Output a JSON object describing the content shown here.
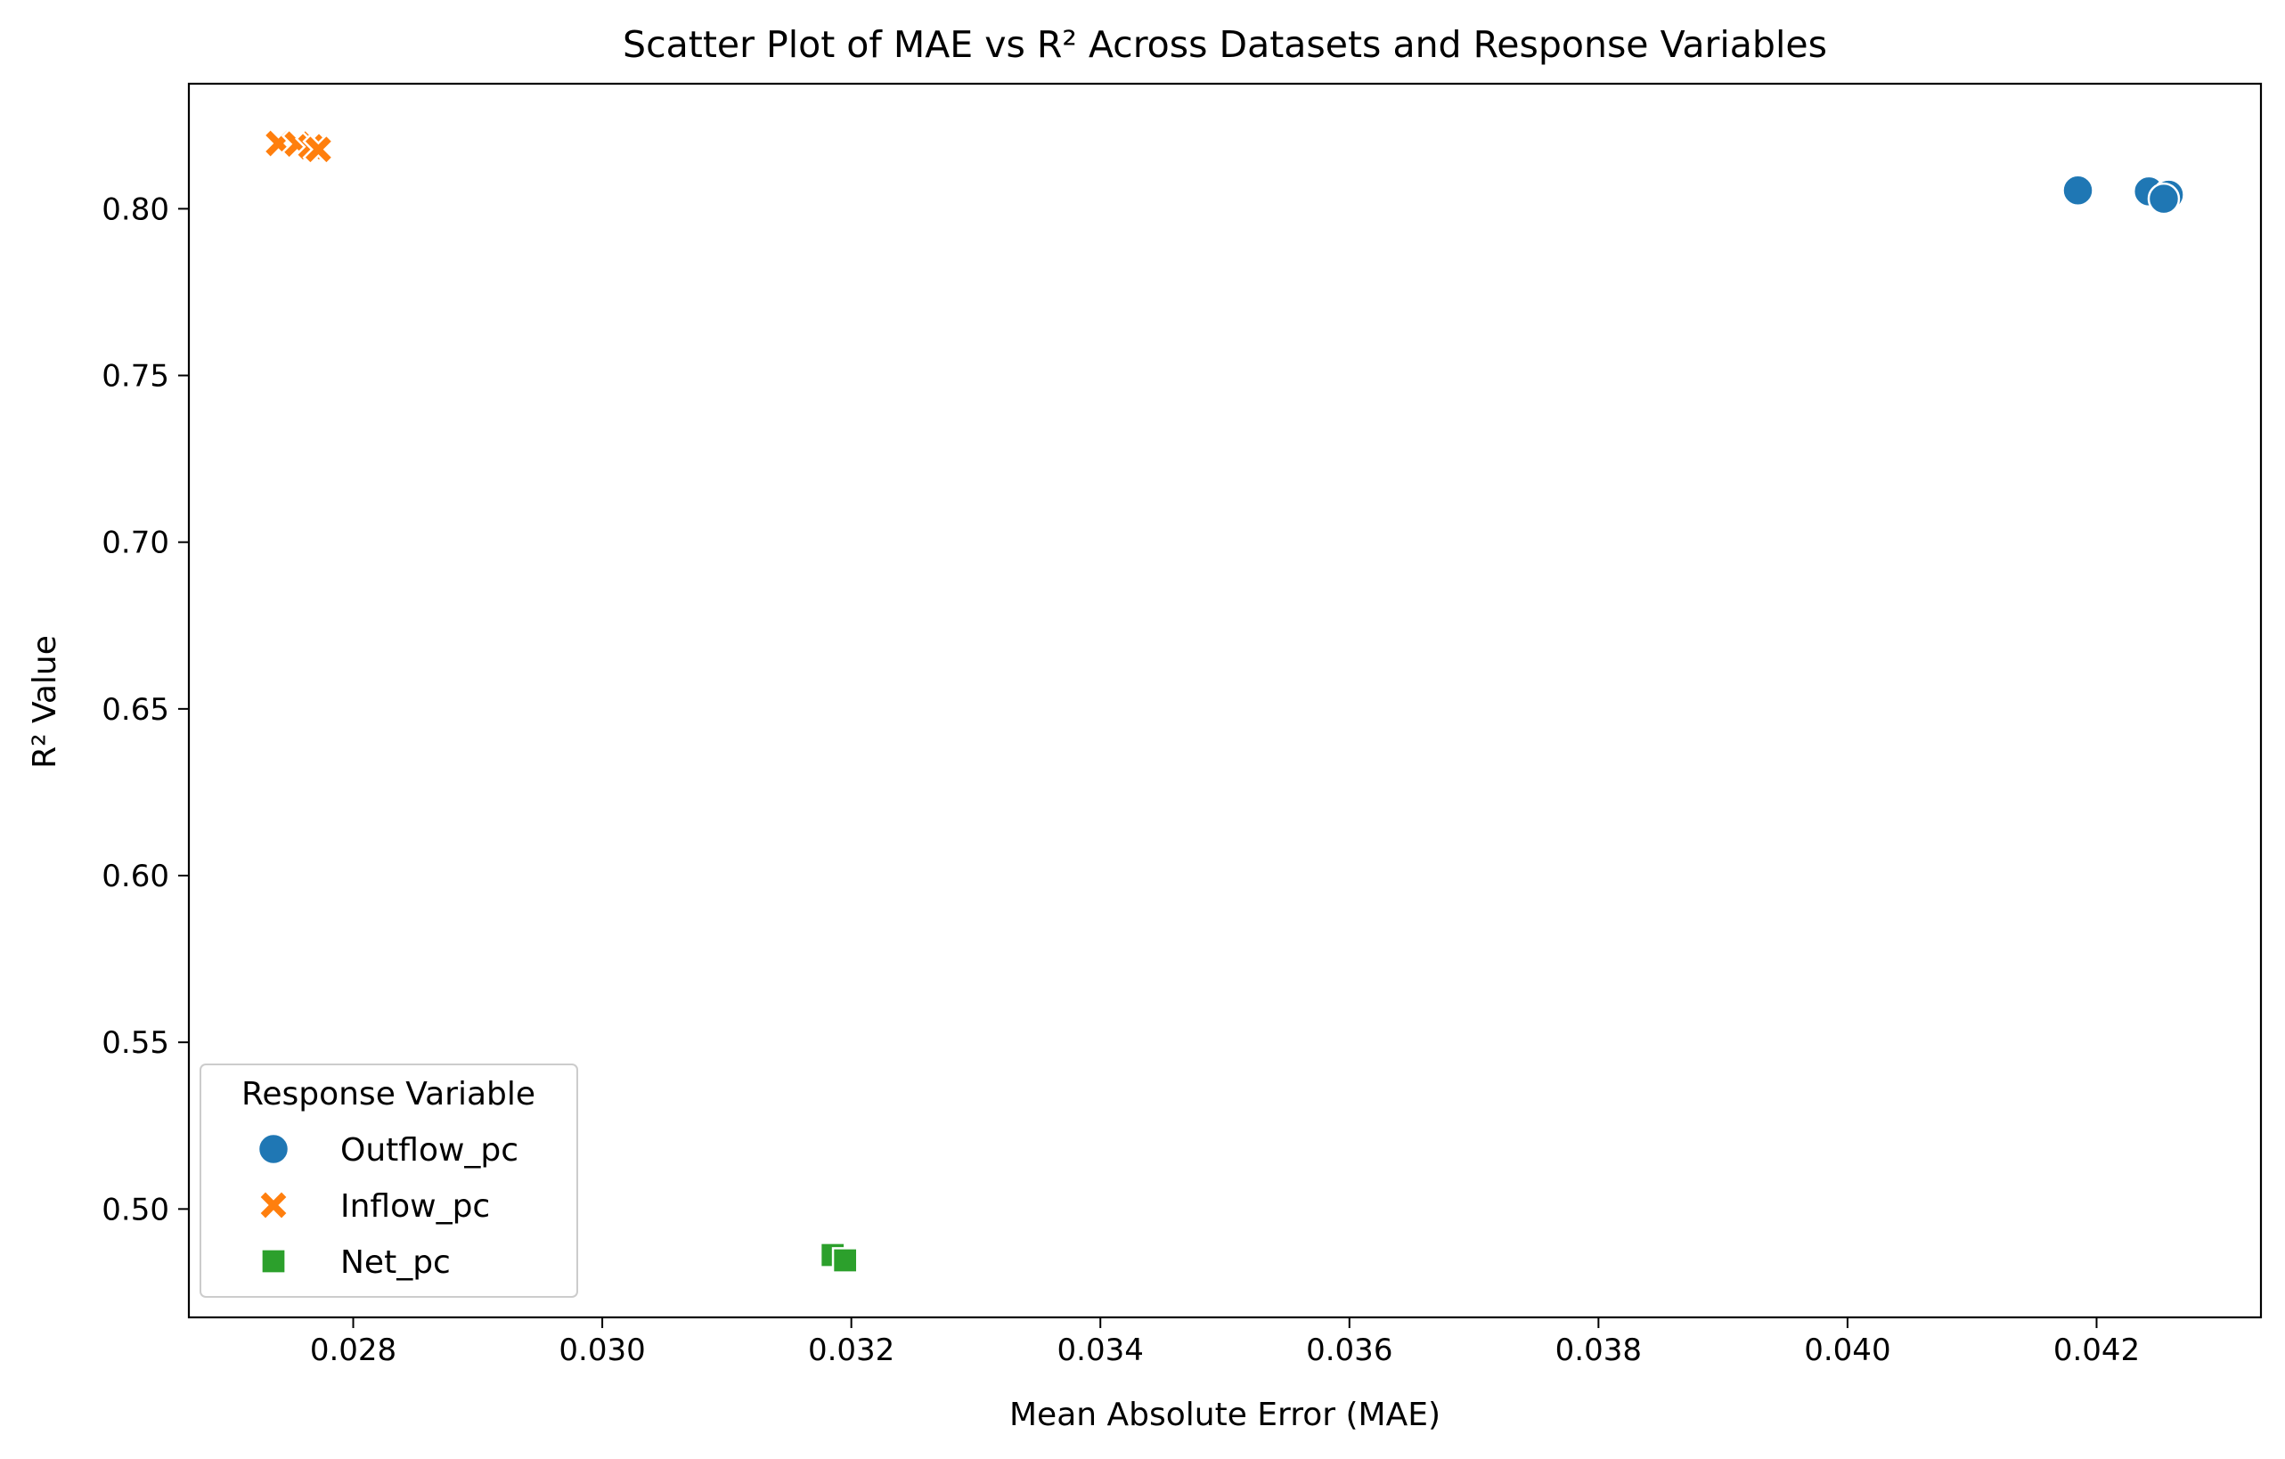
{
  "chart_data": {
    "type": "scatter",
    "title": "Scatter Plot of MAE vs R² Across Datasets and Response Variables",
    "xlabel": "Mean Absolute Error (MAE)",
    "ylabel": "R² Value",
    "xlim": [
      0.02668,
      0.04332
    ],
    "ylim": [
      0.4675,
      0.8375
    ],
    "xticks": [
      0.028,
      0.03,
      0.032,
      0.034,
      0.036,
      0.038,
      0.04,
      0.042
    ],
    "xtick_labels": [
      "0.028",
      "0.030",
      "0.032",
      "0.034",
      "0.036",
      "0.038",
      "0.040",
      "0.042"
    ],
    "yticks": [
      0.5,
      0.55,
      0.6,
      0.65,
      0.7,
      0.75,
      0.8
    ],
    "ytick_labels": [
      "0.50",
      "0.55",
      "0.60",
      "0.65",
      "0.70",
      "0.75",
      "0.80"
    ],
    "grid": false,
    "legend": {
      "title": "Response Variable",
      "position": "lower-left"
    },
    "series": [
      {
        "name": "Outflow_pc",
        "marker": "circle",
        "color": "#1f77b4",
        "points": [
          [
            0.04185,
            0.8055
          ],
          [
            0.04242,
            0.8052
          ],
          [
            0.04258,
            0.8042
          ],
          [
            0.04254,
            0.803
          ]
        ]
      },
      {
        "name": "Inflow_pc",
        "marker": "x",
        "color": "#ff7f0e",
        "points": [
          [
            0.0274,
            0.8196
          ],
          [
            0.02755,
            0.8194
          ],
          [
            0.02766,
            0.8186
          ],
          [
            0.02772,
            0.8178
          ]
        ]
      },
      {
        "name": "Net_pc",
        "marker": "square",
        "color": "#2ca02c",
        "points": [
          [
            0.03185,
            0.4862
          ],
          [
            0.03195,
            0.4846
          ]
        ]
      }
    ]
  }
}
